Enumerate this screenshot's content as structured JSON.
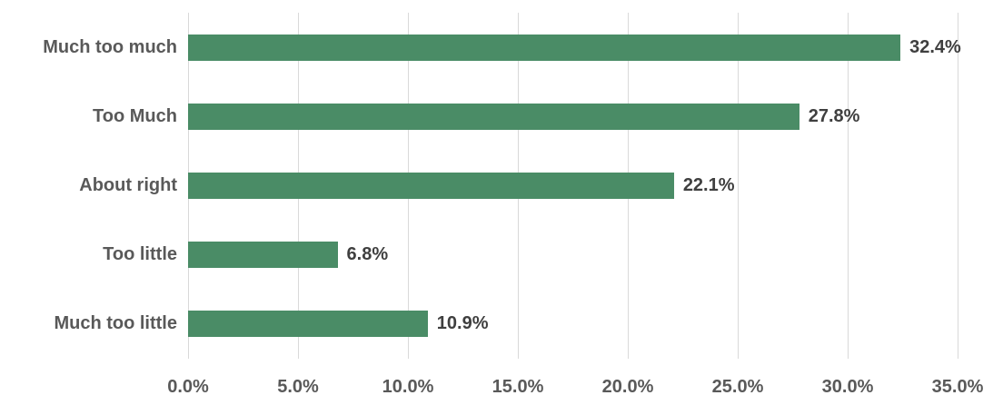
{
  "chart_data": {
    "type": "bar",
    "orientation": "horizontal",
    "title": "",
    "xlabel": "",
    "ylabel": "",
    "categories": [
      "Much too much",
      "Too Much",
      "About right",
      "Too little",
      "Much too little"
    ],
    "values": [
      32.4,
      27.8,
      22.1,
      6.8,
      10.9
    ],
    "value_labels": [
      "32.4%",
      "27.8%",
      "22.1%",
      "6.8%",
      "10.9%"
    ],
    "xlim": [
      0,
      35
    ],
    "x_ticks": [
      0,
      5,
      10,
      15,
      20,
      25,
      30,
      35
    ],
    "x_tick_labels": [
      "0.0%",
      "5.0%",
      "10.0%",
      "15.0%",
      "20.0%",
      "25.0%",
      "30.0%",
      "35.0%"
    ],
    "grid": "vertical-only",
    "legend": "none",
    "colors": {
      "bar": "#4a8c66",
      "gridline": "#d9d9d9",
      "category_label": "#595959",
      "value_label": "#3f3f3f",
      "tick_label": "#595959",
      "background": "#ffffff"
    }
  }
}
